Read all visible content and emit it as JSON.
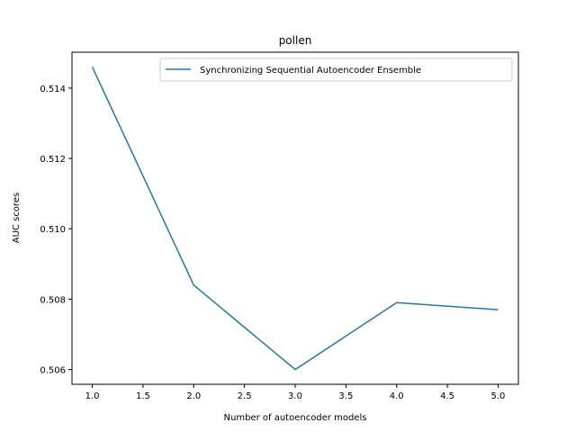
{
  "chart_data": {
    "type": "line",
    "title": "pollen",
    "xlabel": "Number of autoencoder models",
    "ylabel": "AUC scores",
    "x": [
      1,
      2,
      3,
      4,
      5
    ],
    "series": [
      {
        "name": "Synchronizing Sequential Autoencoder Ensemble",
        "values": [
          0.5146,
          0.5084,
          0.506,
          0.5079,
          0.5077
        ],
        "color": "#1f77b4"
      }
    ],
    "xlim": [
      0.8,
      5.2
    ],
    "ylim": [
      0.50558,
      0.51502
    ],
    "xticks": [
      "1.0",
      "1.5",
      "2.0",
      "2.5",
      "3.0",
      "3.5",
      "4.0",
      "4.5",
      "5.0"
    ],
    "yticks": [
      "0.506",
      "0.508",
      "0.510",
      "0.512",
      "0.514"
    ],
    "grid": false,
    "legend_position": "top-right"
  }
}
